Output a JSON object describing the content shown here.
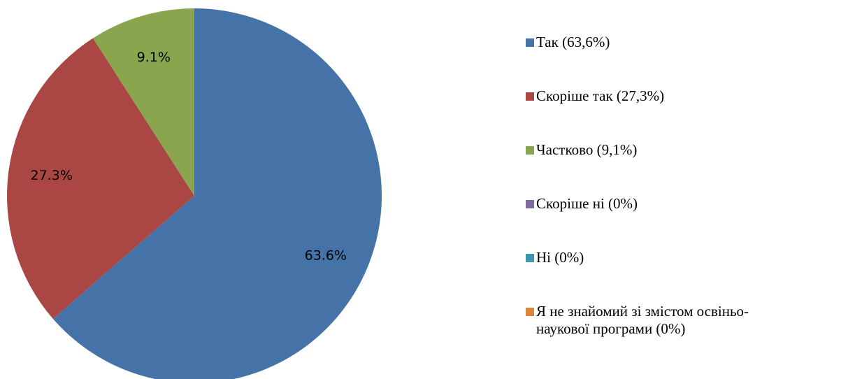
{
  "chart_data": {
    "type": "pie",
    "slices": [
      {
        "name": "Так (63,6%)",
        "value": 63.6,
        "label": "63.6%",
        "color": "#4572A7"
      },
      {
        "name": "Скоріше так (27,3%)",
        "value": 27.3,
        "label": "27.3%",
        "color": "#AA4643"
      },
      {
        "name": "Частково (9,1%)",
        "value": 9.1,
        "label": "9.1%",
        "color": "#89A54E"
      },
      {
        "name": "Скоріше ні (0%)",
        "value": 0,
        "label": "",
        "color": "#80699B"
      },
      {
        "name": "Ні (0%)",
        "value": 0,
        "label": "",
        "color": "#3D96AE"
      },
      {
        "name": "Я не знайомий зі змістом освіньо-\nнаукової програми (0%)",
        "value": 0,
        "label": "",
        "color": "#DB843D"
      }
    ],
    "start_angle": "12 o'clock",
    "direction": "clockwise",
    "legend_position": "right"
  }
}
